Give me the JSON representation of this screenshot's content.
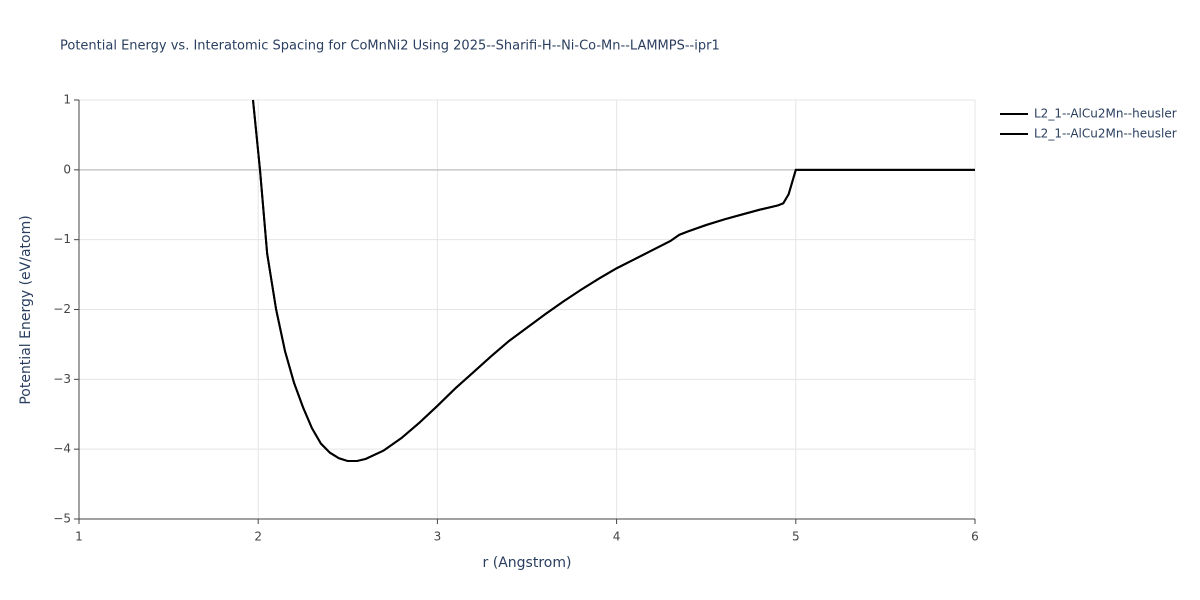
{
  "chart_data": {
    "type": "line",
    "title": "Potential Energy vs. Interatomic Spacing for CoMnNi2 Using 2025--Sharifi-H--Ni-Co-Mn--LAMMPS--ipr1",
    "x_label": "r (Angstrom)",
    "y_label": "Potential Energy (eV/atom)",
    "x": [
      1.971,
      2.01,
      2.05,
      2.1,
      2.15,
      2.2,
      2.25,
      2.3,
      2.35,
      2.4,
      2.45,
      2.5,
      2.55,
      2.6,
      2.7,
      2.8,
      2.9,
      3.0,
      3.1,
      3.2,
      3.3,
      3.4,
      3.5,
      3.6,
      3.7,
      3.8,
      3.9,
      4.0,
      4.1,
      4.2,
      4.3,
      4.35,
      4.4,
      4.5,
      4.6,
      4.7,
      4.8,
      4.9,
      4.93,
      4.96,
      5.0,
      5.5,
      6.0
    ],
    "series": [
      {
        "name": "L2_1--AlCu2Mn--heusler",
        "color": "#000000",
        "values": [
          1,
          0,
          -1.2,
          -2.0,
          -2.6,
          -3.05,
          -3.4,
          -3.7,
          -3.92,
          -4.05,
          -4.13,
          -4.17,
          -4.17,
          -4.14,
          -4.02,
          -3.84,
          -3.62,
          -3.38,
          -3.13,
          -2.9,
          -2.67,
          -2.45,
          -2.26,
          -2.07,
          -1.89,
          -1.72,
          -1.56,
          -1.41,
          -1.28,
          -1.15,
          -1.02,
          -0.93,
          -0.88,
          -0.79,
          -0.71,
          -0.64,
          -0.57,
          -0.51,
          -0.48,
          -0.35,
          0,
          0,
          0
        ]
      },
      {
        "name": "L2_1--AlCu2Mn--heusler",
        "color": "#000000",
        "values": [
          1,
          0,
          -1.2,
          -2.0,
          -2.6,
          -3.05,
          -3.4,
          -3.7,
          -3.92,
          -4.05,
          -4.13,
          -4.17,
          -4.17,
          -4.14,
          -4.02,
          -3.84,
          -3.62,
          -3.38,
          -3.13,
          -2.9,
          -2.67,
          -2.45,
          -2.26,
          -2.07,
          -1.89,
          -1.72,
          -1.56,
          -1.41,
          -1.28,
          -1.15,
          -1.02,
          -0.93,
          -0.88,
          -0.79,
          -0.71,
          -0.64,
          -0.57,
          -0.51,
          -0.48,
          -0.35,
          0,
          0,
          0
        ]
      }
    ],
    "xlim": [
      1,
      6
    ],
    "xticks": [
      1,
      2,
      3,
      4,
      5,
      6
    ],
    "ylim": [
      -5,
      1
    ],
    "yticks": [
      {
        "value": -5,
        "label": "−5"
      },
      {
        "value": -4,
        "label": "−4"
      },
      {
        "value": -3,
        "label": "−3"
      },
      {
        "value": -2,
        "label": "−2"
      },
      {
        "value": -1,
        "label": "−1"
      },
      0,
      1
    ],
    "grid": true,
    "legend": "top-right"
  }
}
